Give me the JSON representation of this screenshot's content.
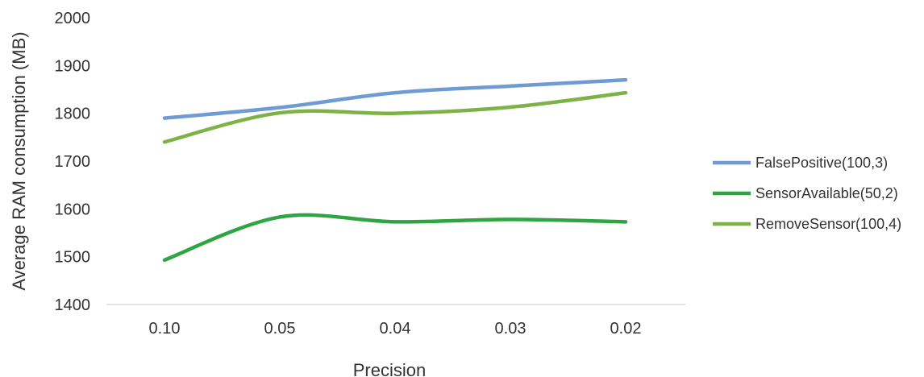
{
  "chart_data": {
    "type": "line",
    "title": "",
    "xlabel": "Precision",
    "ylabel": "Average RAM consumption (MB)",
    "categories": [
      "0.10",
      "0.05",
      "0.04",
      "0.03",
      "0.02"
    ],
    "yticks": [
      "1400",
      "1500",
      "1600",
      "1700",
      "1800",
      "1900",
      "2000"
    ],
    "ylim": [
      1400,
      2000
    ],
    "grid": false,
    "smooth": true,
    "legend_position": "right",
    "series": [
      {
        "name": "FalsePositive(100,3)",
        "color": "#6e9bd1",
        "values": [
          1790,
          1812,
          1843,
          1857,
          1870
        ]
      },
      {
        "name": "SensorAvailable(50,2)",
        "color": "#2ea443",
        "values": [
          1493,
          1583,
          1573,
          1578,
          1573
        ]
      },
      {
        "name": "RemoveSensor(100,4)",
        "color": "#7db247",
        "values": [
          1740,
          1801,
          1800,
          1813,
          1843
        ]
      }
    ]
  }
}
